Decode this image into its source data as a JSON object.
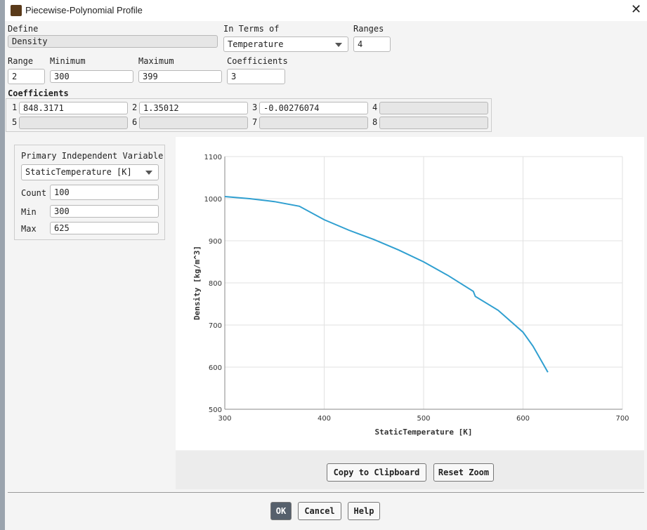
{
  "window": {
    "title": "Piecewise-Polynomial Profile"
  },
  "form": {
    "define_label": "Define",
    "define_value": "Density",
    "terms_label": "In Terms of",
    "terms_value": "Temperature",
    "ranges_label": "Ranges",
    "ranges_value": "4",
    "range_label": "Range",
    "range_value": "2",
    "min_label": "Minimum",
    "min_value": "300",
    "max_label": "Maximum",
    "max_value": "399",
    "coef_count_label": "Coefficients",
    "coef_count_value": "3"
  },
  "coefficients": {
    "label": "Coefficients",
    "items": [
      {
        "index": "1",
        "value": "848.3171"
      },
      {
        "index": "2",
        "value": "1.35012"
      },
      {
        "index": "3",
        "value": "-0.00276074"
      },
      {
        "index": "4"
      },
      {
        "index": "5"
      },
      {
        "index": "6"
      },
      {
        "index": "7"
      },
      {
        "index": "8"
      }
    ]
  },
  "plot_panel": {
    "title": "Primary Independent Variable",
    "variable": "StaticTemperature [K]",
    "count_label": "Count",
    "count_value": "100",
    "min_label": "Min",
    "min_value": "300",
    "max_label": "Max",
    "max_value": "625"
  },
  "chart_data": {
    "type": "line",
    "x_label": "StaticTemperature [K]",
    "y_label": "Density [kg/m^3]",
    "x": [
      300,
      325,
      350,
      375,
      400,
      425,
      450,
      475,
      500,
      525,
      550,
      552,
      575,
      600,
      610,
      625
    ],
    "values": [
      1005,
      1000,
      993,
      982,
      950,
      925,
      903,
      878,
      850,
      817,
      780,
      768,
      735,
      683,
      650,
      588
    ],
    "color": "#2f9fd0",
    "xlim": [
      300,
      700
    ],
    "ylim": [
      500,
      1100
    ],
    "xticks": [
      300,
      400,
      500,
      600,
      700
    ],
    "yticks": [
      500,
      600,
      700,
      800,
      900,
      1000,
      1100
    ],
    "grid": true
  },
  "buttons": {
    "copy": "Copy to Clipboard",
    "reset": "Reset Zoom",
    "ok": "OK",
    "cancel": "Cancel",
    "help": "Help"
  }
}
